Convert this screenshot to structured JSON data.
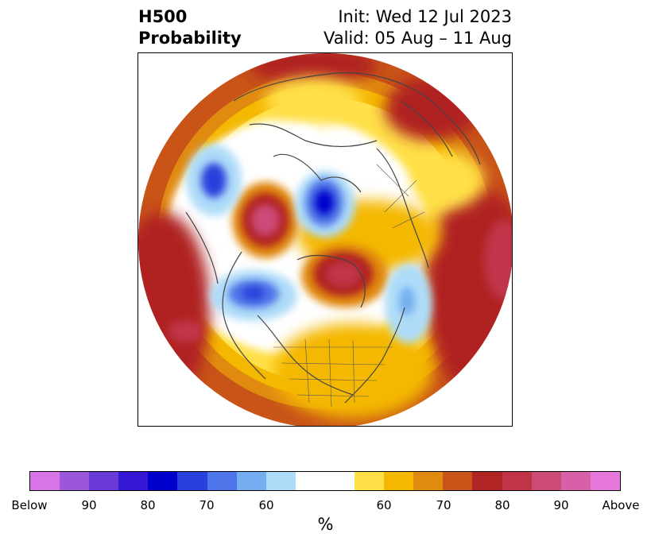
{
  "title": {
    "left_line1": "H500",
    "left_line2": "Probability",
    "right_line1": "Init: Wed 12 Jul 2023",
    "right_line2": "Valid: 05 Aug – 11 Aug"
  },
  "map": {
    "projection": "north-polar-stereographic",
    "field": "500 hPa height anomaly probability"
  },
  "colorbar": {
    "unit_label": "%",
    "colors": [
      "#d674e8",
      "#9a57dc",
      "#6a3ad8",
      "#3418d6",
      "#0000cc",
      "#2a40dc",
      "#4d74e8",
      "#74aef0",
      "#aedcf8",
      "#ffffff",
      "#ffffff",
      "#ffe048",
      "#f4b800",
      "#e08a10",
      "#c85418",
      "#b02424",
      "#c03448",
      "#cc4a78",
      "#d860a8",
      "#e878dc"
    ],
    "tick_labels": [
      "Below",
      "90",
      "80",
      "70",
      "60",
      "60",
      "70",
      "80",
      "90",
      "Above"
    ]
  }
}
